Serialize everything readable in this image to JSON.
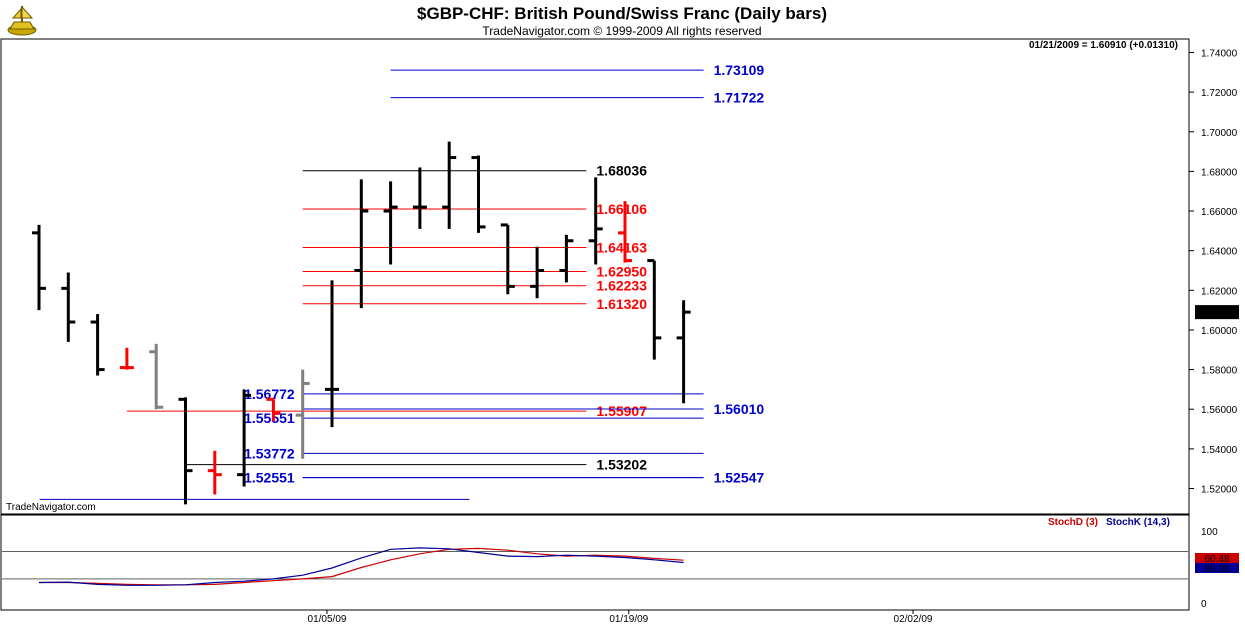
{
  "header": {
    "title": "$GBP-CHF:  British Pound/Swiss Franc  (Daily bars)",
    "subtitle": "TradeNavigator.com © 1999-2009 All rights reserved"
  },
  "logo_icon": "ship-wheel-logo-icon",
  "watermark": "TradeNavigator.com",
  "status": "01/21/2009 = 1.60910 (+0.01310)",
  "current_price_label": "1.60910",
  "colors": {
    "up_bar": "#000000",
    "red_bar": "#ff0000",
    "gray_bar": "#808080",
    "blue_level": "#0000cc",
    "red_level": "#ff0000",
    "black_level": "#000000",
    "stoch_d": "#cc0000",
    "stoch_k": "#000099"
  },
  "chart_data": [
    {
      "type": "ohlc",
      "ylim": [
        1.508,
        1.748
      ],
      "y_ticks": [
        "1.74000",
        "1.72000",
        "1.70000",
        "1.68000",
        "1.66000",
        "1.64000",
        "1.62000",
        "1.60000",
        "1.58000",
        "1.56000",
        "1.54000",
        "1.52000"
      ],
      "x_ticks": [
        "01/05/09",
        "01/19/09",
        "02/02/09"
      ],
      "bars": [
        {
          "o": 1.649,
          "h": 1.653,
          "l": 1.61,
          "c": 1.621,
          "color": "black"
        },
        {
          "o": 1.621,
          "h": 1.629,
          "l": 1.594,
          "c": 1.604,
          "color": "black"
        },
        {
          "o": 1.604,
          "h": 1.608,
          "l": 1.577,
          "c": 1.58,
          "color": "black"
        },
        {
          "o": 1.581,
          "h": 1.591,
          "l": 1.58,
          "c": 1.581,
          "color": "red"
        },
        {
          "o": 1.589,
          "h": 1.593,
          "l": 1.56,
          "c": 1.561,
          "color": "gray"
        },
        {
          "o": 1.565,
          "h": 1.566,
          "l": 1.512,
          "c": 1.529,
          "color": "black"
        },
        {
          "o": 1.529,
          "h": 1.539,
          "l": 1.517,
          "c": 1.527,
          "color": "red"
        },
        {
          "o": 1.527,
          "h": 1.57,
          "l": 1.521,
          "c": 1.567,
          "color": "black"
        },
        {
          "o": 1.565,
          "h": 1.565,
          "l": 1.554,
          "c": 1.558,
          "color": "red"
        },
        {
          "o": 1.557,
          "h": 1.58,
          "l": 1.535,
          "c": 1.573,
          "color": "gray"
        },
        {
          "o": 1.57,
          "h": 1.625,
          "l": 1.551,
          "c": 1.57,
          "color": "black"
        },
        {
          "o": 1.63,
          "h": 1.676,
          "l": 1.611,
          "c": 1.66,
          "color": "black"
        },
        {
          "o": 1.66,
          "h": 1.675,
          "l": 1.633,
          "c": 1.662,
          "color": "black"
        },
        {
          "o": 1.662,
          "h": 1.682,
          "l": 1.651,
          "c": 1.662,
          "color": "black"
        },
        {
          "o": 1.662,
          "h": 1.695,
          "l": 1.651,
          "c": 1.687,
          "color": "black"
        },
        {
          "o": 1.687,
          "h": 1.688,
          "l": 1.649,
          "c": 1.652,
          "color": "black"
        },
        {
          "o": 1.653,
          "h": 1.653,
          "l": 1.618,
          "c": 1.622,
          "color": "black"
        },
        {
          "o": 1.622,
          "h": 1.642,
          "l": 1.616,
          "c": 1.63,
          "color": "black"
        },
        {
          "o": 1.63,
          "h": 1.648,
          "l": 1.624,
          "c": 1.645,
          "color": "black"
        },
        {
          "o": 1.645,
          "h": 1.677,
          "l": 1.633,
          "c": 1.651,
          "color": "black"
        },
        {
          "o": 1.649,
          "h": 1.665,
          "l": 1.634,
          "c": 1.635,
          "color": "red"
        },
        {
          "o": 1.635,
          "h": 1.635,
          "l": 1.585,
          "c": 1.596,
          "color": "black"
        },
        {
          "o": 1.596,
          "h": 1.615,
          "l": 1.563,
          "c": 1.609,
          "color": "black"
        }
      ],
      "levels": [
        {
          "label": "1.73109",
          "value": 1.73109,
          "color": "blue",
          "side": "right",
          "x0": 12,
          "x1": 22
        },
        {
          "label": "1.71722",
          "value": 1.71722,
          "color": "blue",
          "side": "right",
          "x0": 12,
          "x1": 22
        },
        {
          "label": "1.68036",
          "value": 1.68036,
          "color": "black",
          "side": "right",
          "x0": 9,
          "x1": 18
        },
        {
          "label": "1.66106",
          "value": 1.66106,
          "color": "red",
          "side": "right",
          "x0": 9,
          "x1": 18
        },
        {
          "label": "1.64163",
          "value": 1.64163,
          "color": "red",
          "side": "right",
          "x0": 9,
          "x1": 18
        },
        {
          "label": "1.62950",
          "value": 1.6295,
          "color": "red",
          "side": "right",
          "x0": 9,
          "x1": 18
        },
        {
          "label": "1.62233",
          "value": 1.62233,
          "color": "red",
          "side": "right",
          "x0": 9,
          "x1": 18
        },
        {
          "label": "1.61320",
          "value": 1.6132,
          "color": "red",
          "side": "right",
          "x0": 9,
          "x1": 18
        },
        {
          "label": "1.56772",
          "value": 1.56772,
          "color": "blue",
          "side": "left",
          "x0": 9,
          "x1": 22
        },
        {
          "label": "1.55907",
          "value": 1.55907,
          "color": "red",
          "side": "right",
          "x0": 3,
          "x1": 18
        },
        {
          "label": "1.56010",
          "value": 1.5601,
          "color": "blue",
          "side": "right",
          "x0": 9,
          "x1": 22
        },
        {
          "label": "1.55551",
          "value": 1.55551,
          "color": "blue",
          "side": "left",
          "x0": 9,
          "x1": 22
        },
        {
          "label": "1.53772",
          "value": 1.53772,
          "color": "blue",
          "side": "left",
          "x0": 9,
          "x1": 22
        },
        {
          "label": "1.53202",
          "value": 1.53202,
          "color": "black",
          "side": "right",
          "x0": 5,
          "x1": 18
        },
        {
          "label": "1.52551",
          "value": 1.52551,
          "color": "blue",
          "side": "left",
          "x0": 9,
          "x1": 22
        },
        {
          "label": "1.52547",
          "value": 1.52547,
          "color": "blue",
          "side": "right",
          "x0": 9,
          "x1": 22
        },
        {
          "label": "",
          "value": 1.5145,
          "color": "blue",
          "side": "none",
          "x0": -1,
          "x1": 14
        }
      ]
    },
    {
      "type": "line",
      "ylim": [
        0,
        100
      ],
      "y_ticks": [
        "100",
        "0"
      ],
      "legend": [
        "StochD (3)",
        "StochK (14,3)"
      ],
      "legend_placement": "top-right",
      "last_values": [
        "60.48",
        "56.06"
      ],
      "series": [
        {
          "name": "StochD (3)",
          "color": "red",
          "values": [
            12,
            12,
            10,
            8,
            7,
            7,
            8,
            12,
            16,
            20,
            25,
            45,
            62,
            75,
            85,
            87,
            83,
            75,
            70,
            72,
            70,
            65,
            61
          ]
        },
        {
          "name": "StochK (14,3)",
          "color": "navy",
          "values": [
            12,
            13,
            8,
            6,
            6,
            7,
            12,
            15,
            20,
            28,
            44,
            66,
            85,
            88,
            86,
            78,
            70,
            69,
            72,
            70,
            67,
            62,
            56
          ]
        }
      ]
    }
  ]
}
